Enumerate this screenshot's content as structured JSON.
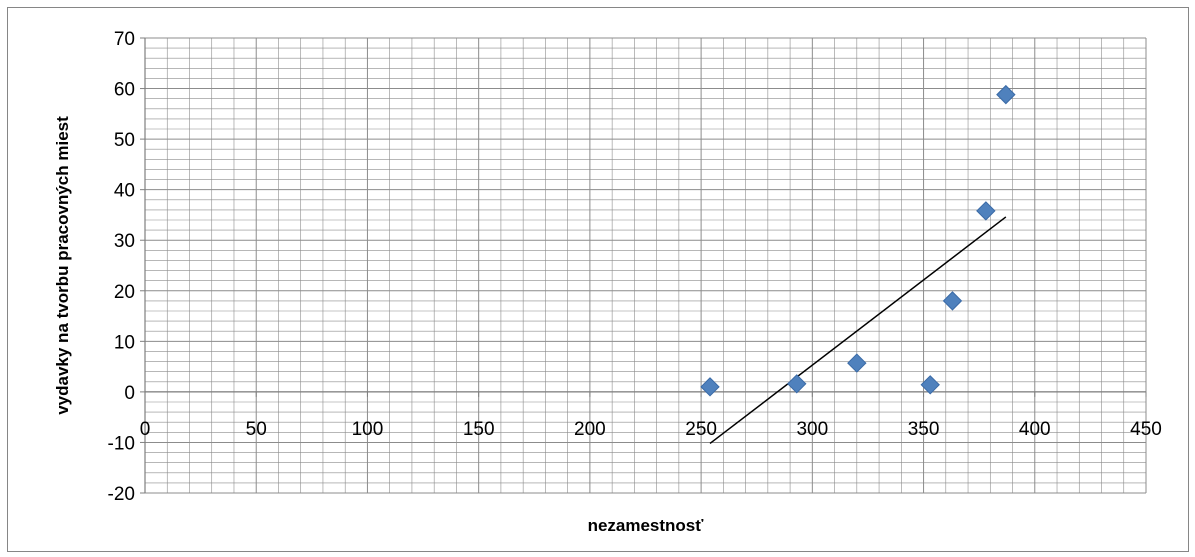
{
  "chart_data": {
    "type": "scatter",
    "title": "",
    "xlabel": "nezamestnosť",
    "ylabel": "vydavky na tvorbu pracovných miest",
    "xlim": [
      0,
      450
    ],
    "ylim": [
      -20,
      70
    ],
    "x_ticks": [
      0,
      50,
      100,
      150,
      200,
      250,
      300,
      350,
      400,
      450
    ],
    "y_ticks": [
      -20,
      -10,
      0,
      10,
      20,
      30,
      40,
      50,
      60,
      70
    ],
    "x_minor_step": 10,
    "y_minor_step": 2,
    "grid": true,
    "legend": "none",
    "points": [
      {
        "x": 254,
        "y": 1.0
      },
      {
        "x": 293,
        "y": 1.6
      },
      {
        "x": 320,
        "y": 5.7
      },
      {
        "x": 353,
        "y": 1.4
      },
      {
        "x": 363,
        "y": 18.0
      },
      {
        "x": 378,
        "y": 35.8
      },
      {
        "x": 387,
        "y": 58.8
      }
    ],
    "trendline": {
      "type": "linear",
      "x_start": 254,
      "x_end": 387,
      "y_start": -10.2,
      "y_end": 34.6
    },
    "colors": {
      "marker": "#4f81bd",
      "marker_edge": "#3a6aa6",
      "grid": "#8c8c8c",
      "trendline": "#000000"
    }
  }
}
